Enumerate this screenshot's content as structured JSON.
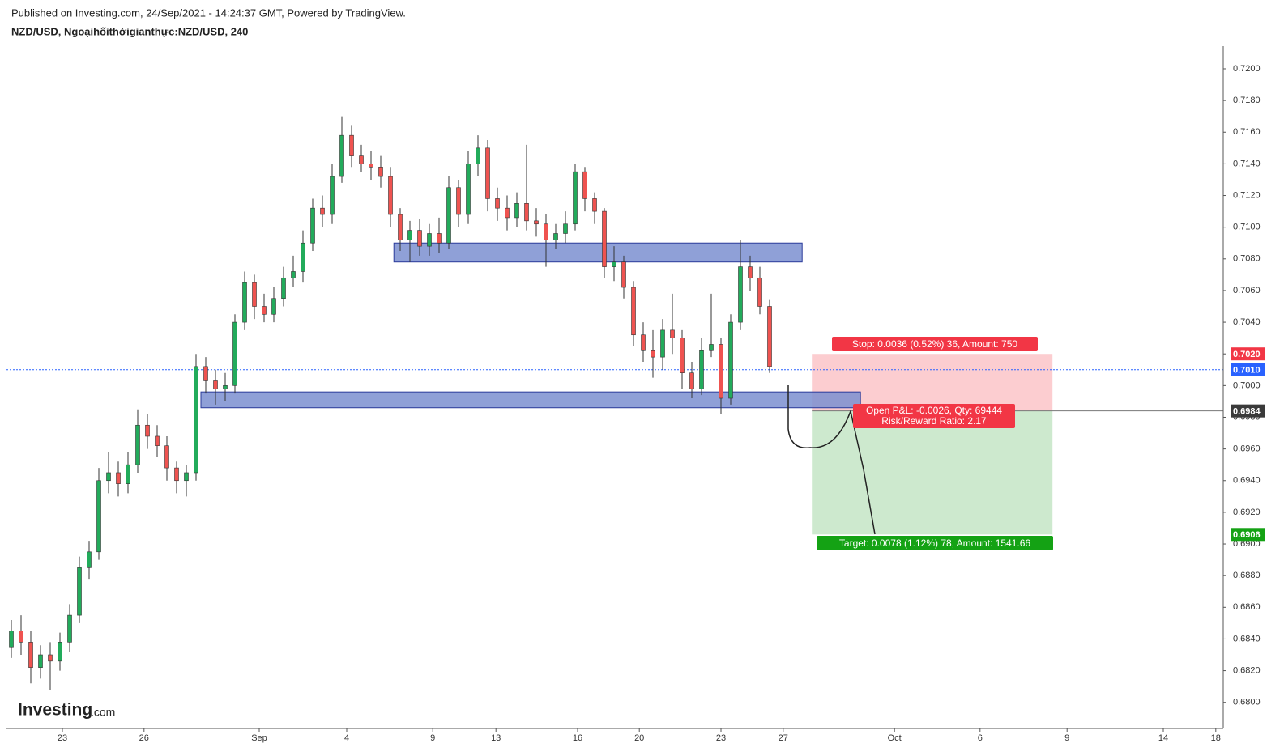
{
  "header": {
    "published": "Published on Investing.com, 24/Sep/2021 - 14:24:37 GMT, Powered by TradingView.",
    "logo": "Investing",
    "logo_suffix": ".com"
  },
  "chart_data": {
    "type": "candlestick",
    "title": "NZD/USD, Ngoạihốithờigianthực:NZD/USD, 240",
    "up_color": "#22ab5b",
    "down_color": "#ef5350",
    "xlim": [
      0,
      250
    ],
    "ylim": [
      0.67835,
      0.72143
    ],
    "xticks": [
      {
        "value": 11.5,
        "label": "23"
      },
      {
        "value": 28.3,
        "label": "26"
      },
      {
        "value": 52,
        "label": "Sep"
      },
      {
        "value": 70,
        "label": "4"
      },
      {
        "value": 87.7,
        "label": "9"
      },
      {
        "value": 100.7,
        "label": "13"
      },
      {
        "value": 117.5,
        "label": "16"
      },
      {
        "value": 130.2,
        "label": "20"
      },
      {
        "value": 147,
        "label": "23"
      },
      {
        "value": 159.8,
        "label": "27"
      },
      {
        "value": 182.7,
        "label": "Oct"
      },
      {
        "value": 200.3,
        "label": "6"
      },
      {
        "value": 218.2,
        "label": "9"
      },
      {
        "value": 238,
        "label": "14"
      },
      {
        "value": 248.8,
        "label": "18"
      }
    ],
    "yticks": [
      {
        "value": 0.68,
        "label": "0.6800"
      },
      {
        "value": 0.682,
        "label": "0.6820"
      },
      {
        "value": 0.684,
        "label": "0.6840"
      },
      {
        "value": 0.686,
        "label": "0.6860"
      },
      {
        "value": 0.688,
        "label": "0.6880"
      },
      {
        "value": 0.69,
        "label": "0.6900"
      },
      {
        "value": 0.692,
        "label": "0.6920"
      },
      {
        "value": 0.694,
        "label": "0.6940"
      },
      {
        "value": 0.696,
        "label": "0.6960"
      },
      {
        "value": 0.698,
        "label": "0.6980"
      },
      {
        "value": 0.7,
        "label": "0.7000"
      },
      {
        "value": 0.702,
        "label": "0.7020"
      },
      {
        "value": 0.704,
        "label": "0.7040"
      },
      {
        "value": 0.706,
        "label": "0.7060"
      },
      {
        "value": 0.708,
        "label": "0.7080"
      },
      {
        "value": 0.71,
        "label": "0.7100"
      },
      {
        "value": 0.712,
        "label": "0.7120"
      },
      {
        "value": 0.714,
        "label": "0.7140"
      },
      {
        "value": 0.716,
        "label": "0.7160"
      },
      {
        "value": 0.718,
        "label": "0.7180"
      },
      {
        "value": 0.72,
        "label": "0.7200"
      }
    ],
    "x": [
      1,
      3,
      5,
      7,
      9,
      11,
      13,
      15,
      17,
      19,
      21,
      23,
      25,
      27,
      29,
      31,
      33,
      35,
      37,
      39,
      41,
      43,
      45,
      47,
      49,
      51,
      53,
      55,
      57,
      59,
      61,
      63,
      65,
      67,
      69,
      71,
      73,
      75,
      77,
      79,
      81,
      83,
      85,
      87,
      89,
      91,
      93,
      95,
      97,
      99,
      101,
      103,
      105,
      107,
      109,
      111,
      113,
      115,
      117,
      119,
      121,
      123,
      125,
      127,
      129,
      131,
      133,
      135,
      137,
      139,
      141,
      143,
      145,
      147,
      149,
      151,
      153,
      155,
      157
    ],
    "open": [
      0.6835,
      0.6845,
      0.6838,
      0.6822,
      0.683,
      0.6826,
      0.6838,
      0.6855,
      0.6885,
      0.6895,
      0.694,
      0.6945,
      0.6938,
      0.695,
      0.6975,
      0.6968,
      0.6962,
      0.6948,
      0.694,
      0.6945,
      0.7012,
      0.7003,
      0.6998,
      0.7,
      0.704,
      0.7065,
      0.705,
      0.7045,
      0.7055,
      0.7068,
      0.7072,
      0.709,
      0.7112,
      0.7108,
      0.7132,
      0.7158,
      0.7145,
      0.714,
      0.7138,
      0.7132,
      0.7108,
      0.7092,
      0.7098,
      0.7088,
      0.7096,
      0.709,
      0.7125,
      0.7108,
      0.714,
      0.715,
      0.7118,
      0.7112,
      0.7106,
      0.7115,
      0.7104,
      0.7102,
      0.7092,
      0.7096,
      0.7102,
      0.7135,
      0.7118,
      0.711,
      0.7075,
      0.7078,
      0.7062,
      0.7032,
      0.7022,
      0.7018,
      0.7035,
      0.703,
      0.7008,
      0.6998,
      0.7022,
      0.7026,
      0.6992,
      0.704,
      0.7075,
      0.7068,
      0.705
    ],
    "high": [
      0.6852,
      0.6855,
      0.6845,
      0.6836,
      0.6838,
      0.6844,
      0.6862,
      0.6892,
      0.6902,
      0.6948,
      0.6958,
      0.6952,
      0.6958,
      0.6985,
      0.6982,
      0.6975,
      0.6968,
      0.6952,
      0.695,
      0.702,
      0.7018,
      0.701,
      0.7008,
      0.7045,
      0.7072,
      0.707,
      0.7058,
      0.7062,
      0.7075,
      0.7082,
      0.7098,
      0.7118,
      0.712,
      0.714,
      0.717,
      0.7164,
      0.7152,
      0.7148,
      0.7145,
      0.7138,
      0.7112,
      0.7104,
      0.7105,
      0.7102,
      0.7106,
      0.7132,
      0.713,
      0.7148,
      0.7158,
      0.7155,
      0.7125,
      0.712,
      0.7122,
      0.7152,
      0.7112,
      0.7108,
      0.7102,
      0.711,
      0.714,
      0.7138,
      0.7122,
      0.7112,
      0.7088,
      0.7082,
      0.7066,
      0.704,
      0.7035,
      0.7042,
      0.7058,
      0.7035,
      0.7015,
      0.703,
      0.7058,
      0.703,
      0.7045,
      0.7092,
      0.7082,
      0.7075,
      0.7054
    ],
    "low": [
      0.6828,
      0.683,
      0.6812,
      0.6815,
      0.6808,
      0.682,
      0.6832,
      0.685,
      0.6878,
      0.689,
      0.6932,
      0.693,
      0.6932,
      0.6945,
      0.696,
      0.6955,
      0.694,
      0.6932,
      0.693,
      0.694,
      0.6995,
      0.6988,
      0.699,
      0.6995,
      0.7035,
      0.7042,
      0.704,
      0.704,
      0.705,
      0.7062,
      0.7065,
      0.7085,
      0.71,
      0.7102,
      0.7128,
      0.7138,
      0.7135,
      0.713,
      0.7125,
      0.71,
      0.7085,
      0.7078,
      0.7082,
      0.7082,
      0.7084,
      0.7086,
      0.71,
      0.7102,
      0.7132,
      0.711,
      0.7104,
      0.7098,
      0.71,
      0.7098,
      0.7094,
      0.7075,
      0.7086,
      0.709,
      0.7098,
      0.711,
      0.7102,
      0.7068,
      0.7066,
      0.7055,
      0.7025,
      0.7015,
      0.7005,
      0.701,
      0.702,
      0.6998,
      0.6992,
      0.6994,
      0.7018,
      0.6982,
      0.6988,
      0.7035,
      0.706,
      0.7045,
      0.7008
    ],
    "close": [
      0.6845,
      0.6838,
      0.6822,
      0.683,
      0.6826,
      0.6838,
      0.6855,
      0.6885,
      0.6895,
      0.694,
      0.6945,
      0.6938,
      0.695,
      0.6975,
      0.6968,
      0.6962,
      0.6948,
      0.694,
      0.6945,
      0.7012,
      0.7003,
      0.6998,
      0.7,
      0.704,
      0.7065,
      0.705,
      0.7045,
      0.7055,
      0.7068,
      0.7072,
      0.709,
      0.7112,
      0.7108,
      0.7132,
      0.7158,
      0.7145,
      0.714,
      0.7138,
      0.7132,
      0.7108,
      0.7092,
      0.7098,
      0.7088,
      0.7096,
      0.709,
      0.7125,
      0.7108,
      0.714,
      0.715,
      0.7118,
      0.7112,
      0.7106,
      0.7115,
      0.7104,
      0.7102,
      0.7092,
      0.7096,
      0.7102,
      0.7135,
      0.7118,
      0.711,
      0.7075,
      0.7078,
      0.7062,
      0.7032,
      0.7022,
      0.7018,
      0.7035,
      0.703,
      0.7008,
      0.6998,
      0.7022,
      0.7026,
      0.6992,
      0.704,
      0.7075,
      0.7068,
      0.705,
      0.7012
    ],
    "zones": [
      {
        "x": [
          79.7,
          163.7
        ],
        "y": [
          0.7078,
          0.709
        ],
        "color": "#7b8fd0"
      },
      {
        "x": [
          40,
          175.7
        ],
        "y": [
          0.6986,
          0.6996
        ],
        "color": "#7b8fd0"
      }
    ],
    "current_price": 0.701,
    "position": {
      "x": [
        165.7,
        215.2
      ],
      "entry": 0.6984,
      "stop": 0.702,
      "target": 0.6906,
      "stop_label": "Stop: 0.0036 (0.52%) 36, Amount: 750",
      "pnl_label": "Open P&L: -0.0026, Qty: 69444",
      "ratio_label": "Risk/Reward Ratio: 2.17",
      "target_label": "Target: 0.0078 (1.12%) 78, Amount: 1541.66"
    },
    "price_tags": [
      {
        "value": 0.702,
        "label": "0.7020",
        "color": "#f23645"
      },
      {
        "value": 0.701,
        "label": "0.7010",
        "color": "#2962ff"
      },
      {
        "value": 0.6984,
        "label": "0.6984",
        "color": "#3a3a3a"
      },
      {
        "value": 0.6906,
        "label": "0.6906",
        "color": "#14a214"
      }
    ]
  }
}
